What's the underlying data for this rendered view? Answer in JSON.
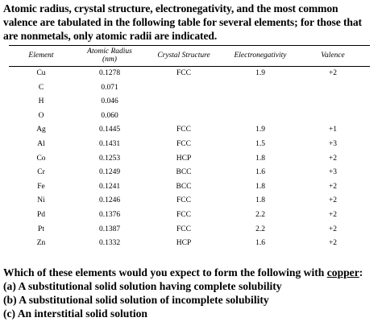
{
  "intro": {
    "line1": "Atomic radius, crystal structure, electronegativity, and the most common",
    "line2": "valence are tabulated in the following table for several elements; for those that",
    "line3": "are nonmetals, only atomic radii are indicated."
  },
  "table": {
    "headers": {
      "element": "Element",
      "radius_line1": "Atomic Radius",
      "radius_line2": "(nm)",
      "crystal": "Crystal Structure",
      "electroneg": "Electronegativity",
      "valence": "Valence"
    },
    "rows": [
      {
        "element": "Cu",
        "radius": "0.1278",
        "crystal": "FCC",
        "electroneg": "1.9",
        "valence": "+2"
      },
      {
        "element": "C",
        "radius": "0.071",
        "crystal": "",
        "electroneg": "",
        "valence": ""
      },
      {
        "element": "H",
        "radius": "0.046",
        "crystal": "",
        "electroneg": "",
        "valence": ""
      },
      {
        "element": "O",
        "radius": "0.060",
        "crystal": "",
        "electroneg": "",
        "valence": ""
      },
      {
        "element": "Ag",
        "radius": "0.1445",
        "crystal": "FCC",
        "electroneg": "1.9",
        "valence": "+1"
      },
      {
        "element": "Al",
        "radius": "0.1431",
        "crystal": "FCC",
        "electroneg": "1.5",
        "valence": "+3"
      },
      {
        "element": "Co",
        "radius": "0.1253",
        "crystal": "HCP",
        "electroneg": "1.8",
        "valence": "+2"
      },
      {
        "element": "Cr",
        "radius": "0.1249",
        "crystal": "BCC",
        "electroneg": "1.6",
        "valence": "+3"
      },
      {
        "element": "Fe",
        "radius": "0.1241",
        "crystal": "BCC",
        "electroneg": "1.8",
        "valence": "+2"
      },
      {
        "element": "Ni",
        "radius": "0.1246",
        "crystal": "FCC",
        "electroneg": "1.8",
        "valence": "+2"
      },
      {
        "element": "Pd",
        "radius": "0.1376",
        "crystal": "FCC",
        "electroneg": "2.2",
        "valence": "+2"
      },
      {
        "element": "Pt",
        "radius": "0.1387",
        "crystal": "FCC",
        "electroneg": "2.2",
        "valence": "+2"
      },
      {
        "element": "Zn",
        "radius": "0.1332",
        "crystal": "HCP",
        "electroneg": "1.6",
        "valence": "+2"
      }
    ]
  },
  "question": {
    "line1_prefix": "Which of these elements would you expect to form the following with ",
    "line1_underlined": "copper",
    "line1_suffix": ":",
    "part_a": "(a) A substitutional solid solution having complete solubility",
    "part_b": "(b) A substitutional solid solution of incomplete solubility",
    "part_c": "(c) An interstitial solid solution"
  }
}
